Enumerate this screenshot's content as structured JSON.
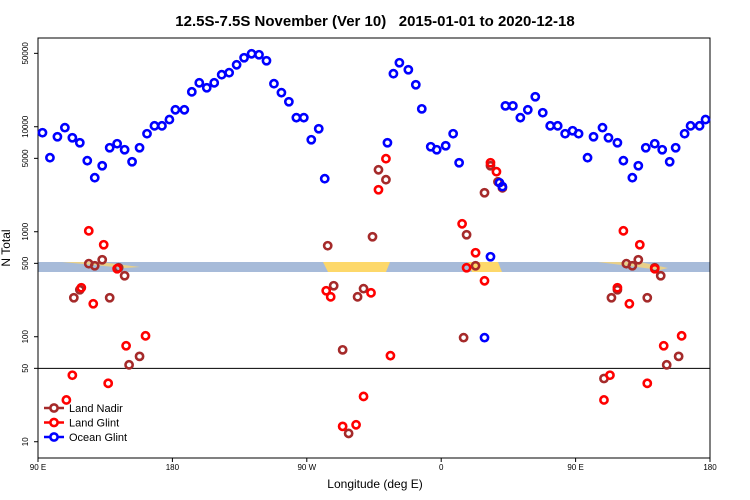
{
  "chart_data": {
    "type": "scatter",
    "title": "12.5S-7.5S November (Ver 10)   2015-01-01 to 2020-12-18",
    "x_label": "Longitude (deg E)",
    "y_label": "N Total",
    "xlim": [
      90,
      540
    ],
    "ylim": [
      7,
      70000
    ],
    "log_y": true,
    "xticks": [
      {
        "value": 90,
        "label": "90 E"
      },
      180,
      {
        "value": 270,
        "label": "90 W"
      },
      {
        "value": 360,
        "label": "0"
      },
      {
        "value": 450,
        "label": "90 E"
      },
      {
        "value": 540,
        "label": "180"
      }
    ],
    "yticks": [
      10,
      50,
      100,
      500,
      1000,
      5000,
      10000,
      50000
    ],
    "hline": 50,
    "legend": "bottom-left",
    "series": [
      {
        "name": "Land Nadir",
        "color": "#a52a2a",
        "x": [
          114,
          118,
          124,
          128,
          133,
          138,
          144,
          148,
          151,
          158,
          284,
          288,
          294,
          298,
          304,
          308,
          314,
          318,
          323,
          375,
          377,
          383,
          389,
          393,
          398,
          401,
          469,
          474,
          478,
          484,
          488,
          492,
          498,
          503,
          507,
          511,
          519
        ],
        "values": [
          235,
          280,
          496,
          474,
          541,
          235,
          454,
          381,
          54,
          65,
          736,
          306,
          75,
          12,
          240,
          287,
          896,
          3890,
          3130,
          98,
          936,
          474,
          2350,
          4250,
          2990,
          2620,
          40,
          235,
          280,
          496,
          474,
          541,
          235,
          454,
          381,
          54,
          65
        ]
      },
      {
        "name": "Land Glint",
        "color": "#ff0000",
        "x": [
          109,
          113,
          119,
          124,
          127,
          134,
          137,
          143,
          149,
          162,
          283,
          286,
          294,
          303,
          308,
          313,
          318,
          323,
          326,
          374,
          377,
          383,
          389,
          393,
          397,
          469,
          473,
          478,
          482,
          486,
          493,
          498,
          503,
          509,
          521
        ],
        "values": [
          25,
          43,
          293,
          1020,
          206,
          752,
          36,
          444,
          82,
          102,
          274,
          240,
          14,
          14.5,
          27,
          262,
          2510,
          4960,
          66,
          1190,
          454,
          631,
          341,
          4540,
          3730,
          25,
          43,
          293,
          1020,
          206,
          752,
          36,
          444,
          82,
          102
        ]
      },
      {
        "name": "Ocean Glint",
        "color": "#0000ff",
        "x": [
          93,
          98,
          103,
          108,
          113,
          118,
          123,
          128,
          133,
          138,
          143,
          148,
          153,
          158,
          163,
          168,
          173,
          178,
          182,
          188,
          193,
          198,
          203,
          208,
          213,
          218,
          223,
          228,
          233,
          238,
          243,
          248,
          253,
          258,
          263,
          268,
          273,
          278,
          282,
          324,
          328,
          332,
          338,
          343,
          347,
          353,
          357,
          363,
          368,
          372,
          389,
          393,
          399,
          401,
          403,
          408,
          413,
          418,
          423,
          428,
          433,
          438,
          443,
          448,
          452,
          458,
          462,
          468,
          472,
          478,
          482,
          488,
          492,
          497,
          503,
          508,
          513,
          517,
          523,
          527,
          533,
          537
        ],
        "values": [
          8770,
          5070,
          8030,
          9800,
          7850,
          7040,
          4750,
          3270,
          4250,
          6310,
          6890,
          6040,
          4640,
          6310,
          8580,
          10200,
          10200,
          11700,
          14500,
          14500,
          21500,
          26200,
          23500,
          26200,
          31300,
          32700,
          38900,
          45400,
          49500,
          48500,
          42500,
          25700,
          21100,
          17300,
          12200,
          12200,
          7520,
          9570,
          3200,
          7040,
          32000,
          40700,
          34900,
          25100,
          14800,
          6450,
          6040,
          6590,
          8580,
          4540,
          98,
          578,
          2930,
          2690,
          15800,
          15800,
          12200,
          14500,
          19300,
          13600,
          10200,
          10200,
          8580,
          9160,
          8580,
          5070,
          8030,
          9800,
          7850,
          7040,
          4750,
          3270,
          4250,
          6310,
          6890,
          6040,
          4640,
          6310,
          8580,
          10200,
          10200,
          11700
        ]
      }
    ]
  }
}
